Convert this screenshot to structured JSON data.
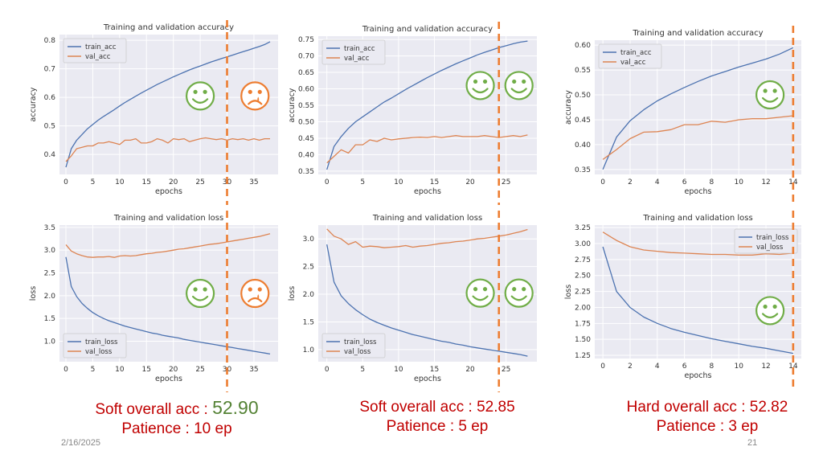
{
  "colors": {
    "train": "#4c72b0",
    "val": "#dd8452",
    "smile": "#70ad47",
    "frown": "#ed7d31",
    "stop_line": "#ed7d31",
    "caption": "#c00000",
    "caption_value": "#548235"
  },
  "chart_data": [
    {
      "id": "acc-p10",
      "type": "line",
      "title": "Training and validation accuracy",
      "xlabel": "epochs",
      "ylabel": "accuracy",
      "xlim": [
        -1.2,
        39.5
      ],
      "ylim": [
        0.33,
        0.82
      ],
      "xticks": [
        "0",
        "5",
        "10",
        "15",
        "20",
        "25",
        "30",
        "35"
      ],
      "yticks": [
        "0.4",
        "0.5",
        "0.6",
        "0.7",
        "0.8"
      ],
      "legend": [
        "train_acc",
        "val_acc"
      ],
      "legend_loc": "top-left",
      "stop_epoch": 30,
      "emoji": [
        {
          "type": "smile",
          "x": 25,
          "y": 0.605
        },
        {
          "type": "frown",
          "x": 35.2,
          "y": 0.605
        }
      ],
      "series": [
        {
          "name": "train_acc",
          "x": [
            0,
            1,
            2,
            3,
            4,
            5,
            6,
            7,
            8,
            9,
            10,
            11,
            12,
            13,
            14,
            15,
            16,
            17,
            18,
            19,
            20,
            21,
            22,
            23,
            24,
            25,
            26,
            27,
            28,
            29,
            30,
            31,
            32,
            33,
            34,
            35,
            36,
            37,
            38
          ],
          "values": [
            0.355,
            0.42,
            0.45,
            0.47,
            0.49,
            0.505,
            0.52,
            0.533,
            0.545,
            0.557,
            0.57,
            0.582,
            0.593,
            0.604,
            0.615,
            0.625,
            0.635,
            0.645,
            0.654,
            0.663,
            0.672,
            0.68,
            0.688,
            0.696,
            0.703,
            0.71,
            0.717,
            0.724,
            0.73,
            0.736,
            0.742,
            0.748,
            0.754,
            0.76,
            0.766,
            0.772,
            0.778,
            0.785,
            0.795
          ]
        },
        {
          "name": "val_acc",
          "x": [
            0,
            1,
            2,
            3,
            4,
            5,
            6,
            7,
            8,
            9,
            10,
            11,
            12,
            13,
            14,
            15,
            16,
            17,
            18,
            19,
            20,
            21,
            22,
            23,
            24,
            25,
            26,
            27,
            28,
            29,
            30,
            31,
            32,
            33,
            34,
            35,
            36,
            37,
            38
          ],
          "values": [
            0.375,
            0.395,
            0.42,
            0.425,
            0.43,
            0.43,
            0.44,
            0.44,
            0.445,
            0.44,
            0.435,
            0.45,
            0.45,
            0.455,
            0.44,
            0.44,
            0.445,
            0.455,
            0.45,
            0.44,
            0.455,
            0.452,
            0.455,
            0.445,
            0.45,
            0.455,
            0.458,
            0.455,
            0.452,
            0.455,
            0.45,
            0.455,
            0.452,
            0.455,
            0.45,
            0.455,
            0.45,
            0.455,
            0.455
          ]
        }
      ]
    },
    {
      "id": "acc-p5",
      "type": "line",
      "title": "Training and validation accuracy",
      "xlabel": "epochs",
      "ylabel": "accuracy",
      "xlim": [
        -1.2,
        29.3
      ],
      "ylim": [
        0.34,
        0.76
      ],
      "xticks": [
        "0",
        "5",
        "10",
        "15",
        "20",
        "25"
      ],
      "yticks": [
        "0.35",
        "0.40",
        "0.45",
        "0.50",
        "0.55",
        "0.60",
        "0.65",
        "0.70",
        "0.75"
      ],
      "legend": [
        "train_acc",
        "val_acc"
      ],
      "legend_loc": "top-left",
      "stop_epoch": 24,
      "emoji": [
        {
          "type": "smile",
          "x": 21.4,
          "y": 0.61
        },
        {
          "type": "smile",
          "x": 26.8,
          "y": 0.61
        }
      ],
      "series": [
        {
          "name": "train_acc",
          "x": [
            0,
            1,
            2,
            3,
            4,
            5,
            6,
            7,
            8,
            9,
            10,
            11,
            12,
            13,
            14,
            15,
            16,
            17,
            18,
            19,
            20,
            21,
            22,
            23,
            24,
            25,
            26,
            27,
            28
          ],
          "values": [
            0.355,
            0.425,
            0.455,
            0.48,
            0.5,
            0.515,
            0.53,
            0.545,
            0.56,
            0.572,
            0.585,
            0.598,
            0.61,
            0.622,
            0.634,
            0.645,
            0.656,
            0.666,
            0.676,
            0.685,
            0.694,
            0.703,
            0.711,
            0.718,
            0.725,
            0.731,
            0.737,
            0.742,
            0.745
          ]
        },
        {
          "name": "val_acc",
          "x": [
            0,
            1,
            2,
            3,
            4,
            5,
            6,
            7,
            8,
            9,
            10,
            11,
            12,
            13,
            14,
            15,
            16,
            17,
            18,
            19,
            20,
            21,
            22,
            23,
            24,
            25,
            26,
            27,
            28
          ],
          "values": [
            0.375,
            0.395,
            0.415,
            0.405,
            0.43,
            0.43,
            0.445,
            0.44,
            0.45,
            0.445,
            0.448,
            0.45,
            0.452,
            0.453,
            0.452,
            0.455,
            0.452,
            0.455,
            0.458,
            0.455,
            0.455,
            0.455,
            0.458,
            0.455,
            0.452,
            0.455,
            0.458,
            0.455,
            0.46
          ]
        }
      ]
    },
    {
      "id": "acc-p3",
      "type": "line",
      "title": "Training and validation accuracy",
      "xlabel": "epochs",
      "ylabel": "accuracy",
      "xlim": [
        -0.6,
        14.6
      ],
      "ylim": [
        0.34,
        0.61
      ],
      "xticks": [
        "0",
        "2",
        "4",
        "6",
        "8",
        "10",
        "12",
        "14"
      ],
      "yticks": [
        "0.35",
        "0.40",
        "0.45",
        "0.50",
        "0.55",
        "0.60"
      ],
      "legend": [
        "train_acc",
        "val_acc"
      ],
      "legend_loc": "top-left",
      "stop_epoch": 14,
      "emoji": [
        {
          "type": "smile",
          "x": 12.3,
          "y": 0.5
        }
      ],
      "series": [
        {
          "name": "train_acc",
          "x": [
            0,
            1,
            2,
            3,
            4,
            5,
            6,
            7,
            8,
            9,
            10,
            11,
            12,
            13,
            14
          ],
          "values": [
            0.35,
            0.415,
            0.448,
            0.47,
            0.488,
            0.502,
            0.515,
            0.527,
            0.538,
            0.547,
            0.556,
            0.564,
            0.572,
            0.582,
            0.595
          ]
        },
        {
          "name": "val_acc",
          "x": [
            0,
            1,
            2,
            3,
            4,
            5,
            6,
            7,
            8,
            9,
            10,
            11,
            12,
            13,
            14
          ],
          "values": [
            0.37,
            0.39,
            0.412,
            0.425,
            0.426,
            0.43,
            0.44,
            0.44,
            0.447,
            0.445,
            0.45,
            0.452,
            0.452,
            0.455,
            0.458
          ]
        }
      ]
    },
    {
      "id": "loss-p10",
      "type": "line",
      "title": "Training and validation loss",
      "xlabel": "epochs",
      "ylabel": "loss",
      "xlim": [
        -1.2,
        39.5
      ],
      "ylim": [
        0.55,
        3.55
      ],
      "xticks": [
        "0",
        "5",
        "10",
        "15",
        "20",
        "25",
        "30",
        "35"
      ],
      "yticks": [
        "1.0",
        "1.5",
        "2.0",
        "2.5",
        "3.0",
        "3.5"
      ],
      "legend": [
        "train_loss",
        "val_loss"
      ],
      "legend_loc": "bottom-left",
      "stop_epoch": 30,
      "emoji": [
        {
          "type": "smile",
          "x": 25,
          "y": 2.05
        },
        {
          "type": "frown",
          "x": 35.2,
          "y": 2.05
        }
      ],
      "series": [
        {
          "name": "train_loss",
          "x": [
            0,
            1,
            2,
            3,
            4,
            5,
            6,
            7,
            8,
            9,
            10,
            11,
            12,
            13,
            14,
            15,
            16,
            17,
            18,
            19,
            20,
            21,
            22,
            23,
            24,
            25,
            26,
            27,
            28,
            29,
            30,
            31,
            32,
            33,
            34,
            35,
            36,
            37,
            38
          ],
          "values": [
            2.85,
            2.2,
            1.98,
            1.83,
            1.72,
            1.63,
            1.56,
            1.5,
            1.45,
            1.41,
            1.37,
            1.33,
            1.3,
            1.27,
            1.24,
            1.21,
            1.18,
            1.16,
            1.13,
            1.11,
            1.09,
            1.07,
            1.04,
            1.02,
            1.0,
            0.98,
            0.96,
            0.94,
            0.92,
            0.9,
            0.88,
            0.86,
            0.84,
            0.82,
            0.8,
            0.78,
            0.76,
            0.74,
            0.72
          ]
        },
        {
          "name": "val_loss",
          "x": [
            0,
            1,
            2,
            3,
            4,
            5,
            6,
            7,
            8,
            9,
            10,
            11,
            12,
            13,
            14,
            15,
            16,
            17,
            18,
            19,
            20,
            21,
            22,
            23,
            24,
            25,
            26,
            27,
            28,
            29,
            30,
            31,
            32,
            33,
            34,
            35,
            36,
            37,
            38
          ],
          "values": [
            3.12,
            2.98,
            2.92,
            2.88,
            2.85,
            2.84,
            2.85,
            2.85,
            2.86,
            2.84,
            2.87,
            2.88,
            2.87,
            2.88,
            2.9,
            2.92,
            2.93,
            2.95,
            2.96,
            2.98,
            3.0,
            3.02,
            3.03,
            3.05,
            3.07,
            3.09,
            3.11,
            3.13,
            3.14,
            3.16,
            3.18,
            3.2,
            3.22,
            3.24,
            3.26,
            3.28,
            3.3,
            3.33,
            3.36
          ]
        }
      ]
    },
    {
      "id": "loss-p5",
      "type": "line",
      "title": "Training and validation loss",
      "xlabel": "epochs",
      "ylabel": "loss",
      "xlim": [
        -1.2,
        29.3
      ],
      "ylim": [
        0.78,
        3.25
      ],
      "xticks": [
        "0",
        "5",
        "10",
        "15",
        "20",
        "25"
      ],
      "yticks": [
        "1.0",
        "1.5",
        "2.0",
        "2.5",
        "3.0"
      ],
      "legend": [
        "train_loss",
        "val_loss"
      ],
      "legend_loc": "bottom-left",
      "stop_epoch": 24,
      "emoji": [
        {
          "type": "smile",
          "x": 21.4,
          "y": 2.02
        },
        {
          "type": "smile",
          "x": 26.8,
          "y": 2.02
        }
      ],
      "series": [
        {
          "name": "train_loss",
          "x": [
            0,
            1,
            2,
            3,
            4,
            5,
            6,
            7,
            8,
            9,
            10,
            11,
            12,
            13,
            14,
            15,
            16,
            17,
            18,
            19,
            20,
            21,
            22,
            23,
            24,
            25,
            26,
            27,
            28
          ],
          "values": [
            2.9,
            2.22,
            1.97,
            1.83,
            1.72,
            1.63,
            1.55,
            1.49,
            1.44,
            1.39,
            1.35,
            1.31,
            1.27,
            1.24,
            1.21,
            1.18,
            1.15,
            1.13,
            1.1,
            1.08,
            1.05,
            1.03,
            1.01,
            0.99,
            0.97,
            0.95,
            0.93,
            0.91,
            0.88
          ]
        },
        {
          "name": "val_loss",
          "x": [
            0,
            1,
            2,
            3,
            4,
            5,
            6,
            7,
            8,
            9,
            10,
            11,
            12,
            13,
            14,
            15,
            16,
            17,
            18,
            19,
            20,
            21,
            22,
            23,
            24,
            25,
            26,
            27,
            28
          ],
          "values": [
            3.18,
            3.05,
            3.0,
            2.9,
            2.95,
            2.85,
            2.87,
            2.86,
            2.84,
            2.85,
            2.86,
            2.88,
            2.85,
            2.87,
            2.88,
            2.9,
            2.92,
            2.93,
            2.95,
            2.96,
            2.98,
            3.0,
            3.01,
            3.03,
            3.05,
            3.07,
            3.1,
            3.13,
            3.17
          ]
        }
      ]
    },
    {
      "id": "loss-p3",
      "type": "line",
      "title": "Training and validation loss",
      "xlabel": "epochs",
      "ylabel": "loss",
      "xlim": [
        -0.6,
        14.6
      ],
      "ylim": [
        1.2,
        3.29
      ],
      "xticks": [
        "0",
        "2",
        "4",
        "6",
        "8",
        "10",
        "12",
        "14"
      ],
      "yticks": [
        "1.25",
        "1.50",
        "1.75",
        "2.00",
        "2.25",
        "2.50",
        "2.75",
        "3.00",
        "3.25"
      ],
      "legend": [
        "train_loss",
        "val_loss"
      ],
      "legend_loc": "top-right",
      "stop_epoch": 14,
      "emoji": [
        {
          "type": "smile",
          "x": 12.3,
          "y": 1.95
        }
      ],
      "series": [
        {
          "name": "train_loss",
          "x": [
            0,
            1,
            2,
            3,
            4,
            5,
            6,
            7,
            8,
            9,
            10,
            11,
            12,
            13,
            14
          ],
          "values": [
            2.95,
            2.25,
            2.0,
            1.85,
            1.75,
            1.67,
            1.61,
            1.56,
            1.51,
            1.47,
            1.43,
            1.39,
            1.36,
            1.32,
            1.28
          ]
        },
        {
          "name": "val_loss",
          "x": [
            0,
            1,
            2,
            3,
            4,
            5,
            6,
            7,
            8,
            9,
            10,
            11,
            12,
            13,
            14
          ],
          "values": [
            3.18,
            3.05,
            2.95,
            2.9,
            2.88,
            2.86,
            2.85,
            2.84,
            2.83,
            2.83,
            2.82,
            2.82,
            2.84,
            2.83,
            2.85
          ]
        }
      ]
    }
  ],
  "captions": [
    {
      "line1_prefix": "Soft overall acc : ",
      "line1_value": "52.90",
      "line2": "Patience : 10 ep"
    },
    {
      "line1": "Soft overall acc : 52.85",
      "line2": "Patience : 5 ep"
    },
    {
      "line1": "Hard overall acc : 52.82",
      "line2": "Patience : 3 ep"
    }
  ],
  "footer": {
    "date": "2/16/2025",
    "page": "21"
  }
}
